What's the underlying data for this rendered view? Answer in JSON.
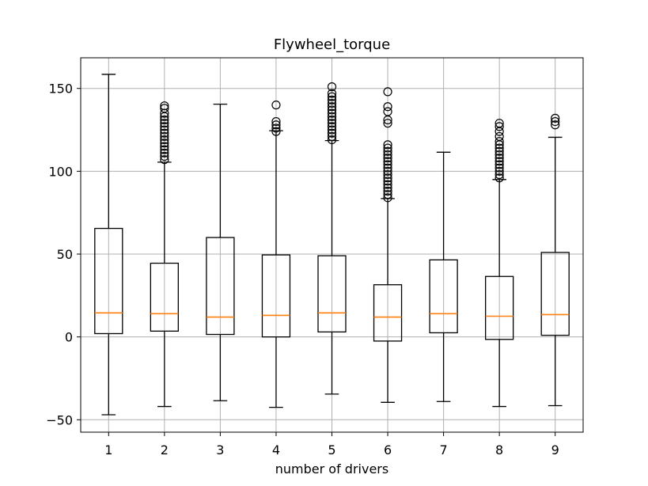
{
  "chart_data": {
    "type": "boxplot",
    "title": "Flywheel_torque",
    "xlabel": "number of drivers",
    "ylabel": "",
    "ylim": [
      -57.5,
      168.5
    ],
    "yticks": [
      -50,
      0,
      50,
      100,
      150
    ],
    "ytick_labels": [
      "−50",
      "0",
      "50",
      "100",
      "150"
    ],
    "grid": true,
    "categories": [
      "1",
      "2",
      "3",
      "4",
      "5",
      "6",
      "7",
      "8",
      "9"
    ],
    "boxes": [
      {
        "label": "1",
        "whisker_low": -47,
        "q1": 2,
        "median": 14.5,
        "q3": 65.5,
        "whisker_high": 158.5,
        "outliers": []
      },
      {
        "label": "2",
        "whisker_low": -42,
        "q1": 3.5,
        "median": 14,
        "q3": 44.5,
        "whisker_high": 105.5,
        "outliers": [
          107,
          109,
          111,
          113,
          115,
          117,
          119,
          121,
          123,
          125,
          127,
          129,
          131,
          133,
          135,
          138,
          139.5
        ]
      },
      {
        "label": "3",
        "whisker_low": -38.5,
        "q1": 1.5,
        "median": 12,
        "q3": 60,
        "whisker_high": 140.5,
        "outliers": []
      },
      {
        "label": "4",
        "whisker_low": -42.5,
        "q1": 0,
        "median": 13,
        "q3": 49.5,
        "whisker_high": 124.5,
        "outliers": [
          124,
          126,
          128,
          130,
          140
        ]
      },
      {
        "label": "5",
        "whisker_low": -34.5,
        "q1": 3,
        "median": 14.5,
        "q3": 49,
        "whisker_high": 118.5,
        "outliers": [
          119,
          121,
          123,
          125,
          127,
          129,
          131,
          133,
          135,
          137,
          139,
          141,
          143,
          145,
          147,
          151
        ]
      },
      {
        "label": "6",
        "whisker_low": -39.5,
        "q1": -2.5,
        "median": 12,
        "q3": 31.5,
        "whisker_high": 83.5,
        "outliers": [
          84,
          86,
          88,
          90,
          92,
          94,
          96,
          98,
          100,
          102,
          104,
          106,
          108,
          110,
          112,
          114,
          116,
          129,
          131,
          136,
          139,
          148
        ]
      },
      {
        "label": "7",
        "whisker_low": -39,
        "q1": 2.5,
        "median": 14,
        "q3": 46.5,
        "whisker_high": 111.5,
        "outliers": []
      },
      {
        "label": "8",
        "whisker_low": -42,
        "q1": -1.5,
        "median": 12.5,
        "q3": 36.5,
        "whisker_high": 95,
        "outliers": [
          96,
          98,
          100,
          102,
          104,
          106,
          108,
          110,
          112,
          114,
          116,
          118,
          121,
          124,
          127,
          129
        ]
      },
      {
        "label": "9",
        "whisker_low": -41.5,
        "q1": 1,
        "median": 13.5,
        "q3": 51,
        "whisker_high": 120.5,
        "outliers": [
          128,
          130,
          132
        ]
      }
    ],
    "colors": {
      "box": "#000000",
      "median": "#ff7f0e",
      "grid": "#b0b0b0",
      "outlier": "#000000"
    }
  }
}
